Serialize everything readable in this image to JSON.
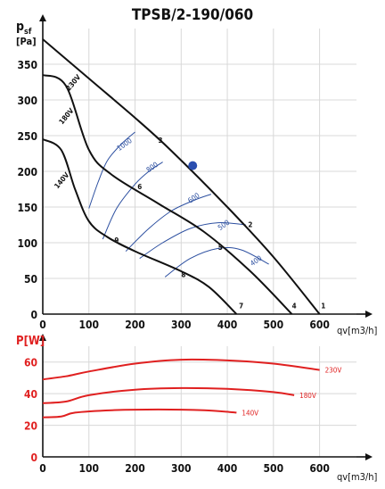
{
  "chart_data": [
    {
      "type": "line",
      "title": "TPSB/2-190/060",
      "ylabel_main": "p",
      "ylabel_sub": "sf",
      "ylabel_unit": "[Pa]",
      "xlabel": "qv[m3/h]",
      "xlim": [
        0,
        680
      ],
      "ylim": [
        0,
        400
      ],
      "x_ticks": [
        "0",
        "100",
        "200",
        "300",
        "400",
        "500",
        "600"
      ],
      "y_ticks": [
        "0",
        "50",
        "100",
        "150",
        "200",
        "250",
        "300",
        "350"
      ],
      "grid": true,
      "colors": {
        "curve": "#111111",
        "rpm": "#2c4fa0",
        "point": "#2b4fb0",
        "grid": "#d8d8d8"
      },
      "series": [
        {
          "name": "230V",
          "label_x": 70,
          "label_y": 322,
          "points": [
            [
              0,
              385
            ],
            [
              100,
              330
            ],
            [
              200,
              275
            ],
            [
              280,
              228
            ],
            [
              400,
              150
            ],
            [
              500,
              80
            ],
            [
              600,
              0
            ]
          ]
        },
        {
          "name": "180V",
          "label_x": 55,
          "label_y": 275,
          "points": [
            [
              0,
              335
            ],
            [
              50,
              320
            ],
            [
              100,
              230
            ],
            [
              150,
              195
            ],
            [
              250,
              155
            ],
            [
              350,
              115
            ],
            [
              450,
              60
            ],
            [
              540,
              0
            ]
          ]
        },
        {
          "name": "140V",
          "label_x": 45,
          "label_y": 185,
          "points": [
            [
              0,
              245
            ],
            [
              40,
              230
            ],
            [
              70,
              175
            ],
            [
              100,
              130
            ],
            [
              140,
              108
            ],
            [
              200,
              88
            ],
            [
              300,
              60
            ],
            [
              360,
              38
            ],
            [
              420,
              0
            ]
          ]
        }
      ],
      "rpm_curves": [
        {
          "name": "1000",
          "label_x": 180,
          "label_y": 235,
          "points": [
            [
              100,
              148
            ],
            [
              120,
              185
            ],
            [
              140,
              215
            ],
            [
              170,
              238
            ],
            [
              200,
              255
            ]
          ]
        },
        {
          "name": "800",
          "label_x": 240,
          "label_y": 203,
          "points": [
            [
              130,
              105
            ],
            [
              160,
              148
            ],
            [
              200,
              182
            ],
            [
              230,
              200
            ],
            [
              260,
              213
            ]
          ]
        },
        {
          "name": "600",
          "label_x": 330,
          "label_y": 160,
          "points": [
            [
              180,
              88
            ],
            [
              230,
              120
            ],
            [
              280,
              145
            ],
            [
              330,
              160
            ],
            [
              365,
              168
            ]
          ]
        },
        {
          "name": "500",
          "label_x": 395,
          "label_y": 122,
          "points": [
            [
              210,
              78
            ],
            [
              260,
              100
            ],
            [
              320,
              120
            ],
            [
              380,
              128
            ],
            [
              440,
              125
            ]
          ]
        },
        {
          "name": "400",
          "label_x": 465,
          "label_y": 72,
          "points": [
            [
              265,
              52
            ],
            [
              320,
              78
            ],
            [
              380,
              92
            ],
            [
              430,
              90
            ],
            [
              490,
              70
            ]
          ]
        }
      ],
      "operating_points": [
        {
          "label": "1",
          "x": 608,
          "y": 8
        },
        {
          "label": "2",
          "x": 450,
          "y": 122
        },
        {
          "label": "3",
          "x": 255,
          "y": 240
        },
        {
          "label": "4",
          "x": 545,
          "y": 8
        },
        {
          "label": "5",
          "x": 385,
          "y": 90
        },
        {
          "label": "6",
          "x": 210,
          "y": 175
        },
        {
          "label": "7",
          "x": 430,
          "y": 8
        },
        {
          "label": "8",
          "x": 305,
          "y": 52
        },
        {
          "label": "9",
          "x": 160,
          "y": 100
        }
      ],
      "marker": {
        "x": 325,
        "y": 208
      }
    },
    {
      "type": "line",
      "ylabel": "P[W]",
      "xlabel": "qv[m3/h]",
      "xlim": [
        0,
        680
      ],
      "ylim": [
        0,
        70
      ],
      "x_ticks": [
        "0",
        "100",
        "200",
        "300",
        "400",
        "500",
        "600"
      ],
      "y_ticks": [
        "0",
        "20",
        "40",
        "60"
      ],
      "grid": true,
      "colors": {
        "curve": "#e02020",
        "axis_label": "#e02020",
        "grid": "#d8d8d8"
      },
      "series": [
        {
          "name": "230V",
          "points": [
            [
              0,
              49
            ],
            [
              50,
              51
            ],
            [
              100,
              54
            ],
            [
              200,
              59
            ],
            [
              300,
              61.5
            ],
            [
              400,
              61
            ],
            [
              500,
              59
            ],
            [
              600,
              55
            ]
          ]
        },
        {
          "name": "180V",
          "points": [
            [
              0,
              34
            ],
            [
              50,
              35
            ],
            [
              100,
              39
            ],
            [
              200,
              42.5
            ],
            [
              300,
              43.5
            ],
            [
              400,
              43
            ],
            [
              500,
              41
            ],
            [
              545,
              39
            ]
          ]
        },
        {
          "name": "140V",
          "points": [
            [
              0,
              25
            ],
            [
              40,
              25.5
            ],
            [
              70,
              28
            ],
            [
              150,
              29.5
            ],
            [
              250,
              30
            ],
            [
              350,
              29.5
            ],
            [
              420,
              28
            ]
          ]
        }
      ]
    }
  ]
}
